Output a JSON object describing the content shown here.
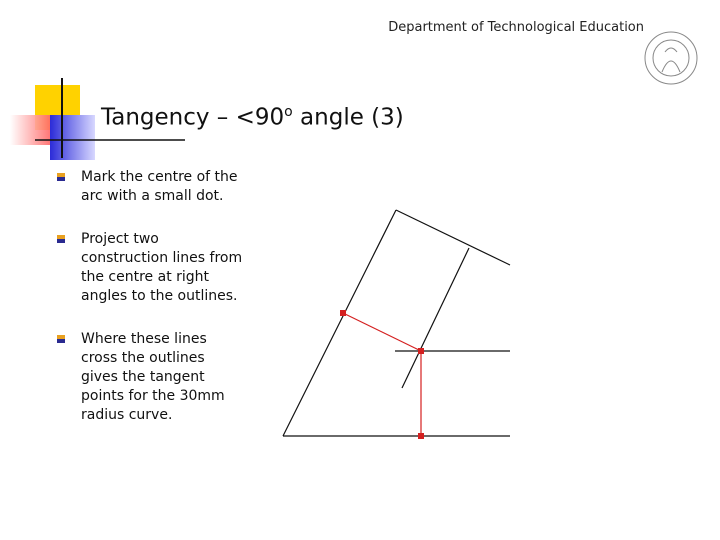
{
  "header": {
    "department": "Department of Technological Education"
  },
  "title": {
    "main": "Tangency – <90",
    "superscript": "o",
    "end": " angle (3)"
  },
  "bullets": [
    "Mark the centre of the arc with a small dot.",
    "Project two construction lines from the centre at right angles to the outlines.",
    "Where these lines cross the outlines gives the tangent points for the 30mm radius curve."
  ]
}
